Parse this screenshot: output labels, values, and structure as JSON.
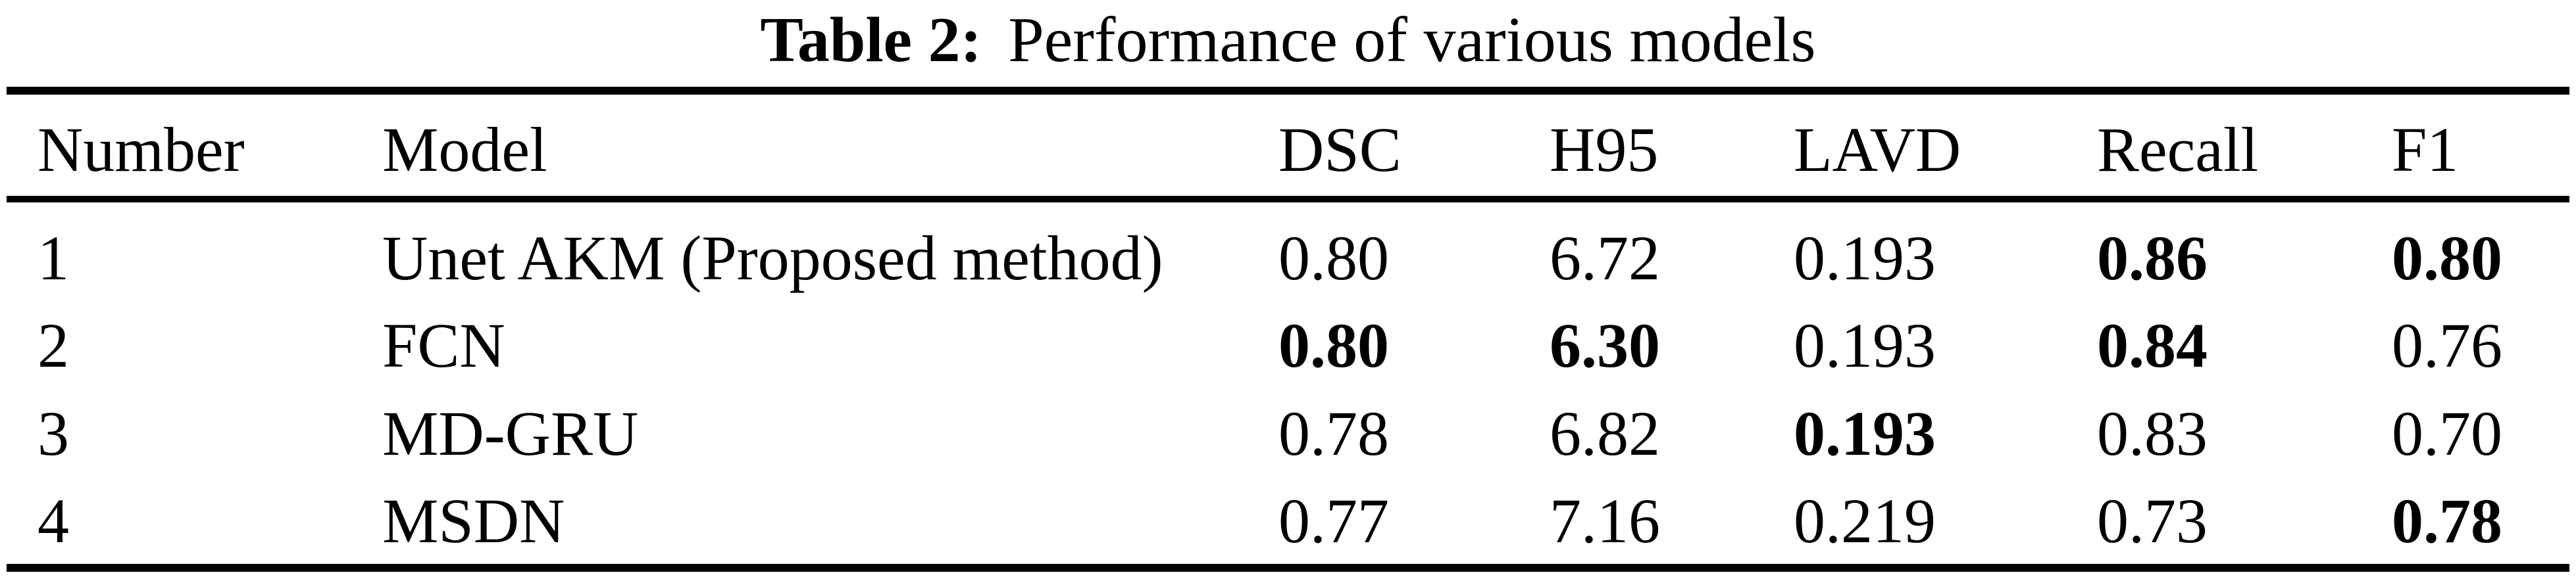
{
  "caption": {
    "prefix": "Table 2:",
    "text": "Performance of various models"
  },
  "table": {
    "columns": [
      "Number",
      "Model",
      "DSC",
      "H95",
      "LAVD",
      "Recall",
      "F1"
    ],
    "rows": [
      {
        "number": "1",
        "model": "Unet AKM (Proposed method)",
        "values": [
          {
            "text": "0.80",
            "bold": false
          },
          {
            "text": "6.72",
            "bold": false
          },
          {
            "text": "0.193",
            "bold": false
          },
          {
            "text": "0.86",
            "bold": true
          },
          {
            "text": "0.80",
            "bold": true
          }
        ]
      },
      {
        "number": "2",
        "model": "FCN",
        "values": [
          {
            "text": "0.80",
            "bold": true
          },
          {
            "text": "6.30",
            "bold": true
          },
          {
            "text": "0.193",
            "bold": false
          },
          {
            "text": "0.84",
            "bold": true
          },
          {
            "text": "0.76",
            "bold": false
          }
        ]
      },
      {
        "number": "3",
        "model": "MD-GRU",
        "values": [
          {
            "text": "0.78",
            "bold": false
          },
          {
            "text": "6.82",
            "bold": false
          },
          {
            "text": "0.193",
            "bold": true
          },
          {
            "text": "0.83",
            "bold": false
          },
          {
            "text": "0.70",
            "bold": false
          }
        ]
      },
      {
        "number": "4",
        "model": "MSDN",
        "values": [
          {
            "text": "0.77",
            "bold": false
          },
          {
            "text": "7.16",
            "bold": false
          },
          {
            "text": "0.219",
            "bold": false
          },
          {
            "text": "0.73",
            "bold": false
          },
          {
            "text": "0.78",
            "bold": true
          }
        ]
      }
    ]
  },
  "colors": {
    "background": "#ffffff",
    "text": "#000000",
    "rule": "#000000"
  }
}
